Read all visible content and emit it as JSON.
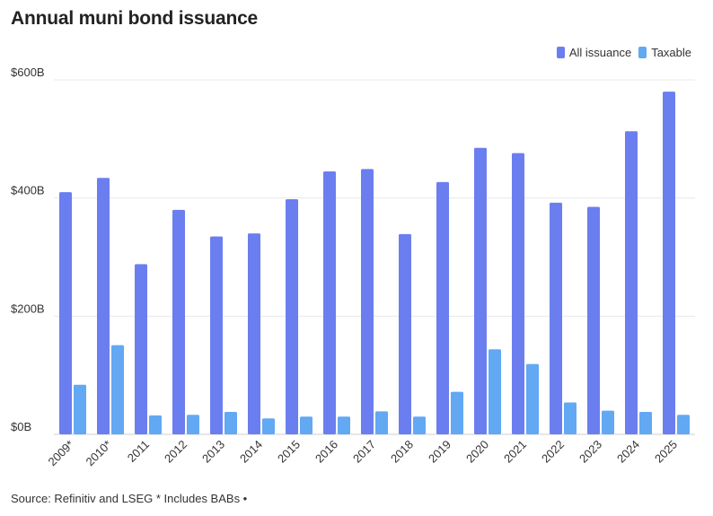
{
  "title": "Annual muni bond issuance",
  "source": "Source: Refinitiv and LSEG * Includes BABs •",
  "chart_data": {
    "type": "bar",
    "title": "Annual muni bond issuance",
    "xlabel": "",
    "ylabel": "",
    "categories": [
      "2009*",
      "2010*",
      "2011",
      "2012",
      "2013",
      "2014",
      "2015",
      "2016",
      "2017",
      "2018",
      "2019",
      "2020",
      "2021",
      "2022",
      "2023",
      "2024",
      "2025"
    ],
    "series": [
      {
        "name": "All issuance",
        "color": "#6b7ef0",
        "values": [
          410,
          434,
          288,
          380,
          335,
          340,
          398,
          445,
          449,
          339,
          427,
          485,
          476,
          392,
          385,
          513,
          580
        ]
      },
      {
        "name": "Taxable",
        "color": "#62a8f3",
        "values": [
          84,
          151,
          32,
          33,
          38,
          27,
          30,
          30,
          39,
          30,
          72,
          144,
          119,
          54,
          40,
          38,
          33
        ]
      }
    ],
    "ylim": [
      0,
      600
    ],
    "yticks": [
      0,
      200,
      400,
      600
    ],
    "ytick_labels": [
      "$0B",
      "$200B",
      "$400B",
      "$600B"
    ],
    "grid": true,
    "legend_position": "top-right"
  }
}
